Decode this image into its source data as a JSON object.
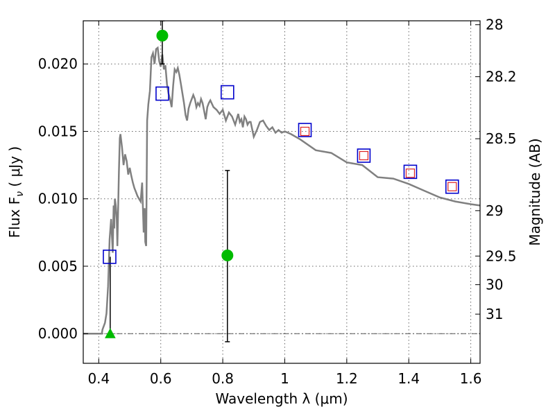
{
  "chart_data": {
    "type": "scatter",
    "xlabel": "Wavelength  λ (μm)",
    "ylabel": "Flux  F",
    "ylabel_subscript": "ν",
    "ylabel_units": "  ( μJy )",
    "y2label": "Magnitude (AB)",
    "xlim": [
      0.35,
      1.63
    ],
    "ylim": [
      -0.0022,
      0.0232
    ],
    "grid": true,
    "x_ticks": [
      {
        "value": 0.4,
        "label": "0.4"
      },
      {
        "value": 0.6,
        "label": "0.6"
      },
      {
        "value": 0.8,
        "label": "0.8"
      },
      {
        "value": 1.0,
        "label": "1"
      },
      {
        "value": 1.2,
        "label": "1.2"
      },
      {
        "value": 1.4,
        "label": "1.4"
      },
      {
        "value": 1.6,
        "label": "1.6"
      }
    ],
    "y_ticks": [
      {
        "value": 0.0,
        "label": "0.000"
      },
      {
        "value": 0.005,
        "label": "0.005"
      },
      {
        "value": 0.01,
        "label": "0.010"
      },
      {
        "value": 0.015,
        "label": "0.015"
      },
      {
        "value": 0.02,
        "label": "0.020"
      }
    ],
    "y2_ticks": [
      {
        "mag": 28,
        "label": "28"
      },
      {
        "mag": 28.2,
        "label": "28.2"
      },
      {
        "mag": 28.5,
        "label": "28.5"
      },
      {
        "mag": 29,
        "label": "29"
      },
      {
        "mag": 29.5,
        "label": "29.5"
      },
      {
        "mag": 30,
        "label": "30"
      },
      {
        "mag": 31,
        "label": "31"
      }
    ],
    "sed_model": {
      "color": "#808080",
      "x": [
        0.35,
        0.41,
        0.412,
        0.42,
        0.425,
        0.43,
        0.435,
        0.44,
        0.445,
        0.448,
        0.45,
        0.452,
        0.455,
        0.458,
        0.46,
        0.462,
        0.465,
        0.468,
        0.47,
        0.475,
        0.48,
        0.485,
        0.49,
        0.495,
        0.5,
        0.505,
        0.51,
        0.515,
        0.52,
        0.525,
        0.53,
        0.535,
        0.54,
        0.545,
        0.548,
        0.55,
        0.553,
        0.556,
        0.56,
        0.565,
        0.57,
        0.575,
        0.58,
        0.585,
        0.59,
        0.595,
        0.6,
        0.605,
        0.61,
        0.615,
        0.62,
        0.625,
        0.63,
        0.635,
        0.64,
        0.645,
        0.65,
        0.655,
        0.66,
        0.665,
        0.67,
        0.675,
        0.68,
        0.685,
        0.69,
        0.695,
        0.7,
        0.705,
        0.71,
        0.715,
        0.72,
        0.725,
        0.73,
        0.735,
        0.74,
        0.745,
        0.75,
        0.755,
        0.76,
        0.77,
        0.78,
        0.79,
        0.8,
        0.81,
        0.82,
        0.83,
        0.84,
        0.85,
        0.855,
        0.86,
        0.865,
        0.87,
        0.875,
        0.88,
        0.885,
        0.89,
        0.9,
        0.91,
        0.92,
        0.93,
        0.94,
        0.95,
        0.96,
        0.97,
        0.98,
        0.99,
        1.0,
        1.02,
        1.05,
        1.1,
        1.15,
        1.2,
        1.25,
        1.3,
        1.35,
        1.4,
        1.45,
        1.5,
        1.55,
        1.6,
        1.63
      ],
      "y": [
        0.0,
        0.0,
        0.0003,
        0.0008,
        0.0015,
        0.0035,
        0.007,
        0.0085,
        0.006,
        0.0095,
        0.0078,
        0.01,
        0.0095,
        0.0085,
        0.0065,
        0.0088,
        0.012,
        0.0145,
        0.0148,
        0.0138,
        0.0125,
        0.0133,
        0.0128,
        0.0118,
        0.0123,
        0.0117,
        0.0112,
        0.0108,
        0.0105,
        0.0102,
        0.01,
        0.0098,
        0.0112,
        0.0075,
        0.0093,
        0.0068,
        0.0065,
        0.0158,
        0.017,
        0.018,
        0.0205,
        0.0208,
        0.02,
        0.0211,
        0.0212,
        0.0202,
        0.0198,
        0.0207,
        0.0196,
        0.0199,
        0.0185,
        0.0178,
        0.0174,
        0.0168,
        0.0184,
        0.0196,
        0.0194,
        0.0197,
        0.0192,
        0.0185,
        0.0178,
        0.0171,
        0.0162,
        0.0158,
        0.0167,
        0.0171,
        0.0174,
        0.0177,
        0.0174,
        0.0168,
        0.0171,
        0.0169,
        0.0174,
        0.0171,
        0.0165,
        0.0159,
        0.0168,
        0.0171,
        0.0173,
        0.0168,
        0.0166,
        0.0163,
        0.0166,
        0.0158,
        0.0164,
        0.0161,
        0.0155,
        0.0163,
        0.0157,
        0.0159,
        0.0153,
        0.0161,
        0.0159,
        0.0155,
        0.0157,
        0.0157,
        0.0146,
        0.0151,
        0.0157,
        0.0158,
        0.0154,
        0.0151,
        0.0153,
        0.0149,
        0.0151,
        0.0149,
        0.015,
        0.0148,
        0.0144,
        0.0136,
        0.0134,
        0.0127,
        0.0125,
        0.0116,
        0.0115,
        0.0111,
        0.0106,
        0.0101,
        0.0098,
        0.0096,
        0.0095
      ]
    },
    "blue_squares": {
      "color": "#0000cc",
      "x": [
        0.435,
        0.605,
        0.815,
        1.065,
        1.255,
        1.405,
        1.54
      ],
      "y": [
        0.0057,
        0.0178,
        0.0179,
        0.0151,
        0.0132,
        0.012,
        0.0109
      ]
    },
    "red_squares": {
      "color": "#dd2222",
      "x": [
        1.065,
        1.255,
        1.405,
        1.54
      ],
      "y": [
        0.015,
        0.0132,
        0.0119,
        0.0109
      ]
    },
    "green_points": {
      "color": "#00bb00",
      "x": [
        0.605,
        0.815
      ],
      "y": [
        0.0221,
        0.0058
      ],
      "err_low": [
        0.0021,
        0.0064
      ],
      "err_high": [
        0.0011,
        0.0063
      ]
    },
    "green_triangle": {
      "color": "#00bb00",
      "x": 0.437,
      "y": 0.0,
      "err_high": 0.0003
    },
    "zero_line": {
      "y": 0.0,
      "color": "#555555"
    }
  }
}
